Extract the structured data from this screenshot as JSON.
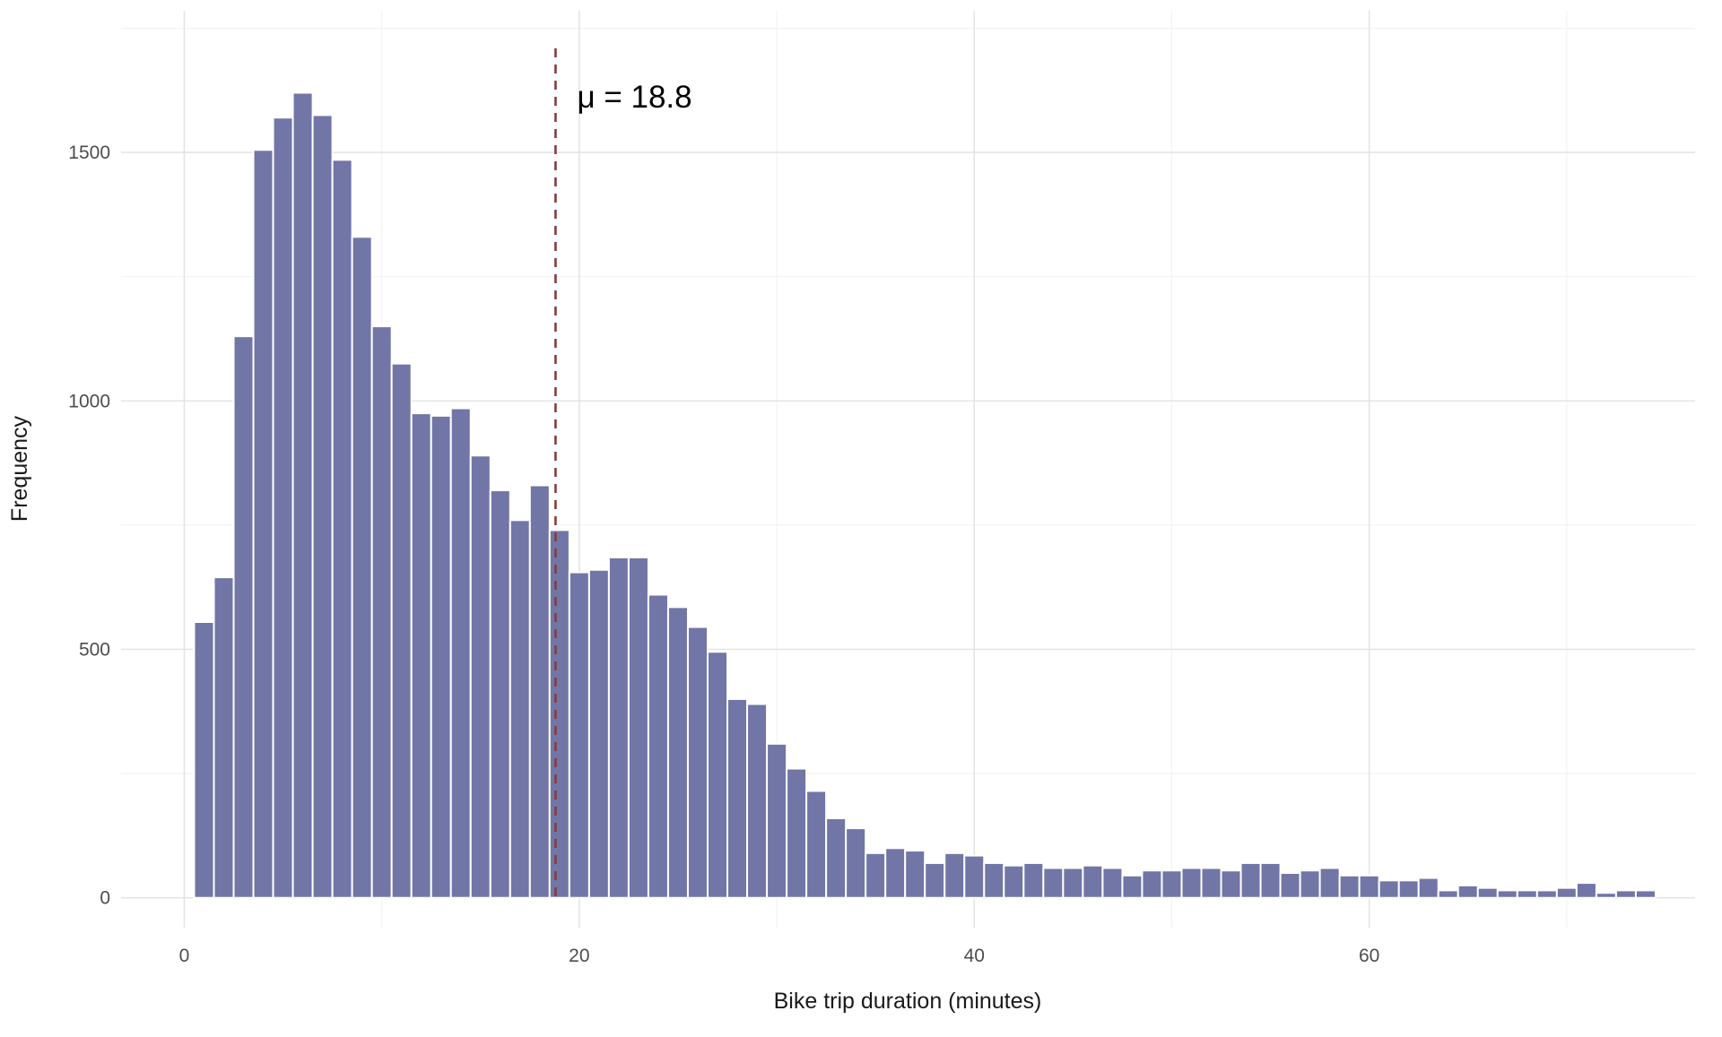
{
  "chart_data": {
    "type": "bar",
    "subtype": "histogram",
    "title": "",
    "xlabel": "Bike trip duration (minutes)",
    "ylabel": "Frequency",
    "xlim": [
      -3.2,
      76.5
    ],
    "ylim": [
      -60,
      1785
    ],
    "x_ticks": [
      0,
      20,
      40,
      60
    ],
    "x_minor_ticks": [
      10,
      30,
      50,
      70
    ],
    "y_ticks": [
      0,
      500,
      1000,
      1500
    ],
    "y_minor_ticks": [
      250,
      750,
      1250,
      1750
    ],
    "grid": "on",
    "legend": "none",
    "bin_start": 0.5,
    "bin_width": 1,
    "frequencies": [
      555,
      645,
      1130,
      1505,
      1570,
      1620,
      1575,
      1485,
      1330,
      1150,
      1075,
      975,
      970,
      985,
      890,
      820,
      760,
      830,
      740,
      655,
      660,
      685,
      685,
      610,
      585,
      545,
      495,
      400,
      390,
      310,
      260,
      215,
      160,
      140,
      90,
      100,
      95,
      70,
      90,
      85,
      70,
      65,
      70,
      60,
      60,
      65,
      60,
      45,
      55,
      55,
      60,
      60,
      55,
      70,
      70,
      50,
      55,
      60,
      45,
      45,
      35,
      35,
      40,
      15,
      25,
      20,
      15,
      15,
      15,
      20,
      30,
      10,
      15,
      15
    ],
    "mean_line": {
      "x": 18.8,
      "label": "μ = 18.8",
      "style": "dashed",
      "color": "#853c3c"
    },
    "colors": {
      "bar_fill": "#7176a7",
      "bar_stroke": "#ffffff",
      "grid_major": "#e4e4e4",
      "grid_minor": "#f1f1f1",
      "axis_text": "#4d4d4d",
      "axis_title": "#1a1a1a",
      "mean_label_text": "#000000"
    }
  }
}
